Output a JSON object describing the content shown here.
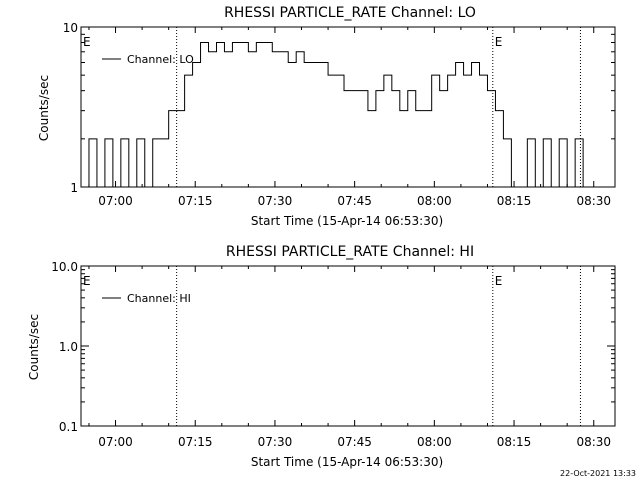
{
  "chart_data": [
    {
      "type": "line",
      "title": "RHESSI PARTICLE_RATE Channel: LO",
      "xlabel": "Start Time (15-Apr-14 06:53:30)",
      "ylabel": "Counts/sec",
      "yscale": "log",
      "xlim": [
        "06:53:30",
        "08:34:00"
      ],
      "ylim": [
        1,
        10
      ],
      "xticks": [
        "07:00",
        "07:15",
        "07:30",
        "07:45",
        "08:00",
        "08:15",
        "08:30"
      ],
      "yticks": [
        "1",
        "10"
      ],
      "legend": {
        "label": "Channel: LO",
        "position": "top-left"
      },
      "markers": [
        {
          "time": "07:11:30",
          "style": "dotted",
          "label": "E"
        },
        {
          "time": "08:11:00",
          "style": "dotted",
          "label": "E"
        },
        {
          "time": "08:27:30",
          "style": "dotted",
          "label": ""
        }
      ],
      "series": [
        {
          "x": [
            "06:53:30",
            "06:55:00",
            "06:56:30",
            "06:58:00",
            "06:59:30",
            "07:01:00",
            "07:02:30",
            "07:04:00",
            "07:05:30",
            "07:07:00",
            "07:08:30",
            "07:10:00",
            "07:11:30",
            "07:13:00",
            "07:14:30",
            "07:16:00",
            "07:17:30",
            "07:19:00",
            "07:20:30",
            "07:22:00",
            "07:23:30",
            "07:25:00",
            "07:26:30",
            "07:28:00",
            "07:29:30",
            "07:31:00",
            "07:32:30",
            "07:34:00",
            "07:35:30",
            "07:37:00",
            "07:38:30",
            "07:40:00",
            "07:41:30",
            "07:43:00",
            "07:44:30",
            "07:46:00",
            "07:47:30",
            "07:49:00",
            "07:50:30",
            "07:52:00",
            "07:53:30",
            "07:55:00",
            "07:56:30",
            "07:58:00",
            "07:59:30",
            "08:01:00",
            "08:02:30",
            "08:04:00",
            "08:05:30",
            "08:07:00",
            "08:08:30",
            "08:10:00",
            "08:11:30",
            "08:13:00",
            "08:14:30",
            "08:16:00",
            "08:17:30",
            "08:19:00",
            "08:20:30",
            "08:22:00",
            "08:23:30",
            "08:25:00",
            "08:26:30",
            "08:28:00"
          ],
          "y": [
            1,
            2,
            1,
            2,
            1,
            2,
            1,
            2,
            1,
            2,
            2,
            3,
            3,
            5,
            6,
            8,
            7,
            8,
            7,
            8,
            8,
            7,
            8,
            8,
            7,
            7,
            6,
            7,
            6,
            6,
            6,
            5,
            5,
            4,
            4,
            4,
            3,
            4,
            5,
            4,
            3,
            4,
            3,
            3,
            5,
            4,
            5,
            6,
            5,
            6,
            5,
            4,
            3,
            2,
            1,
            1,
            2,
            1,
            2,
            1,
            2,
            1,
            2,
            1
          ]
        }
      ]
    },
    {
      "type": "line",
      "title": "RHESSI PARTICLE_RATE Channel: HI",
      "xlabel": "Start Time (15-Apr-14 06:53:30)",
      "ylabel": "Counts/sec",
      "yscale": "log",
      "xlim": [
        "06:53:30",
        "08:34:00"
      ],
      "ylim": [
        0.1,
        10
      ],
      "xticks": [
        "07:00",
        "07:15",
        "07:30",
        "07:45",
        "08:00",
        "08:15",
        "08:30"
      ],
      "yticks": [
        "0.1",
        "1.0",
        "10.0"
      ],
      "legend": {
        "label": "Channel: HI",
        "position": "top-left"
      },
      "markers": [
        {
          "time": "07:11:30",
          "style": "dotted",
          "label": "E"
        },
        {
          "time": "08:11:00",
          "style": "dotted",
          "label": "E"
        },
        {
          "time": "08:27:30",
          "style": "dotted",
          "label": ""
        }
      ],
      "series": [
        {
          "x": [],
          "y": []
        }
      ]
    }
  ],
  "footer": {
    "stamp": "22-Oct-2021 13:33"
  }
}
